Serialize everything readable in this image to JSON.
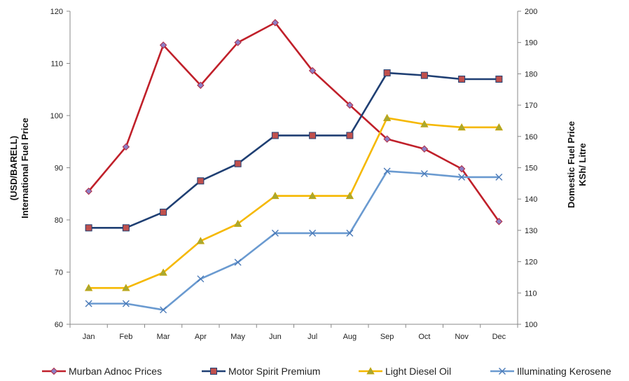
{
  "chart_data": {
    "type": "line",
    "categories": [
      "Jan",
      "Feb",
      "Mar",
      "Apr",
      "May",
      "Jun",
      "Jul",
      "Aug",
      "Sep",
      "Oct",
      "Nov",
      "Dec"
    ],
    "left_axis": {
      "title_line1": "(USD/BARELL)",
      "title_line2": "International Fuel Price",
      "ylim": [
        60,
        120
      ],
      "ticks": [
        60,
        70,
        80,
        90,
        100,
        110,
        120
      ]
    },
    "right_axis": {
      "title_line1": "Domestic Fuel Price",
      "title_line2": "KSh/ Litre",
      "ylim": [
        100,
        200
      ],
      "ticks": [
        100,
        110,
        120,
        130,
        140,
        150,
        160,
        170,
        180,
        190,
        200
      ]
    },
    "grid": false,
    "legend_position": "bottom",
    "series": [
      {
        "name": "Murban Adnoc Prices",
        "axis": "left",
        "color": "#C0202A",
        "marker": "diamond",
        "marker_fill": "#8C7FC4",
        "values": [
          85.5,
          94.0,
          113.5,
          105.8,
          114.0,
          117.8,
          108.6,
          102.0,
          95.5,
          93.6,
          89.8,
          79.7
        ]
      },
      {
        "name": "Motor Spirit Premium",
        "axis": "right",
        "color": "#1F3F73",
        "marker": "square",
        "marker_fill": "#C0504D",
        "values": [
          130.8,
          130.8,
          135.8,
          145.8,
          151.3,
          160.3,
          160.3,
          160.3,
          180.3,
          179.5,
          178.3,
          178.3
        ]
      },
      {
        "name": "Light Diesel Oil",
        "axis": "right",
        "color": "#F5B800",
        "marker": "triangle",
        "marker_fill": "#A8A832",
        "values": [
          111.6,
          111.6,
          116.5,
          126.6,
          132.1,
          141.0,
          141.0,
          141.0,
          165.9,
          163.9,
          162.9,
          162.9
        ]
      },
      {
        "name": "Illuminating Kerosene",
        "axis": "right",
        "color": "#6A9AD0",
        "marker": "x",
        "marker_fill": "#4A7AB8",
        "values": [
          106.6,
          106.6,
          104.6,
          114.5,
          119.8,
          129.1,
          129.1,
          129.1,
          148.9,
          148.1,
          147.0,
          147.0
        ]
      }
    ]
  }
}
